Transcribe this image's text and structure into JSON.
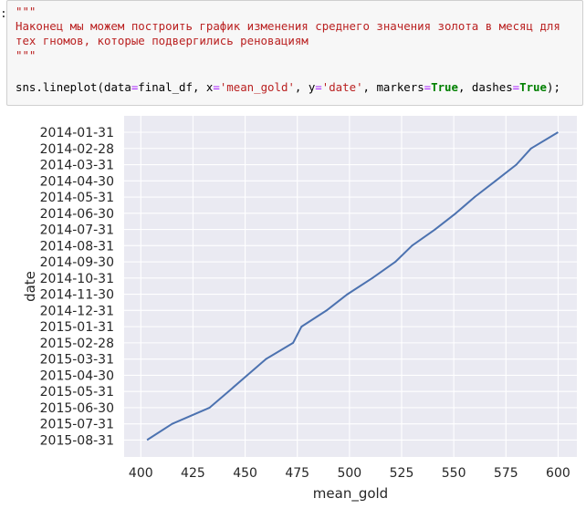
{
  "cell": {
    "prompt": ":",
    "docstring_open": "\"\"\"",
    "comment_line_1": "Наконец мы можем построить график изменения среднего значения золота в месяц для",
    "comment_line_2": "тех гномов, которые подвергились реновациям",
    "docstring_close": "\"\"\"",
    "code": {
      "func": "sns.lineplot(",
      "arg_data": "data",
      "eq": "=",
      "val_data": "final_df, ",
      "arg_x": "x",
      "val_x": "'mean_gold'",
      "comma": ", ",
      "arg_y": "y",
      "val_y": "'date'",
      "arg_markers": "markers",
      "val_markers": "True",
      "arg_dashes": "dashes",
      "val_dashes": "True",
      "close": ");"
    }
  },
  "colors": {
    "line": "#4c72b0",
    "plot_bg": "#eaeaf2",
    "grid": "#ffffff",
    "text": "#262626"
  },
  "chart_data": {
    "type": "line",
    "title": "",
    "xlabel": "mean_gold",
    "ylabel": "date",
    "xlim": [
      392,
      609
    ],
    "xticks": [
      400,
      425,
      450,
      475,
      500,
      525,
      550,
      575,
      600
    ],
    "y_categories": [
      "2014-01-31",
      "2014-02-28",
      "2014-03-31",
      "2014-04-30",
      "2014-05-31",
      "2014-06-30",
      "2014-07-31",
      "2014-08-31",
      "2014-09-30",
      "2014-10-31",
      "2014-11-30",
      "2014-12-31",
      "2015-01-31",
      "2015-02-28",
      "2015-03-31",
      "2015-04-30",
      "2015-05-31",
      "2015-06-30",
      "2015-07-31",
      "2015-08-31"
    ],
    "grid": true,
    "series": [
      {
        "points": [
          {
            "x": 600,
            "y": "2014-01-31"
          },
          {
            "x": 587,
            "y": "2014-02-28"
          },
          {
            "x": 580,
            "y": "2014-03-31"
          },
          {
            "x": 570,
            "y": "2014-04-30"
          },
          {
            "x": 560,
            "y": "2014-05-31"
          },
          {
            "x": 551,
            "y": "2014-06-30"
          },
          {
            "x": 541,
            "y": "2014-07-31"
          },
          {
            "x": 530,
            "y": "2014-08-31"
          },
          {
            "x": 522,
            "y": "2014-09-30"
          },
          {
            "x": 511,
            "y": "2014-10-31"
          },
          {
            "x": 499,
            "y": "2014-11-30"
          },
          {
            "x": 489,
            "y": "2014-12-31"
          },
          {
            "x": 477,
            "y": "2015-01-31"
          },
          {
            "x": 473,
            "y": "2015-02-28"
          },
          {
            "x": 460,
            "y": "2015-03-31"
          },
          {
            "x": 451,
            "y": "2015-04-30"
          },
          {
            "x": 442,
            "y": "2015-05-31"
          },
          {
            "x": 433,
            "y": "2015-06-30"
          },
          {
            "x": 415,
            "y": "2015-07-31"
          },
          {
            "x": 403,
            "y": "2015-08-31"
          }
        ]
      }
    ]
  }
}
